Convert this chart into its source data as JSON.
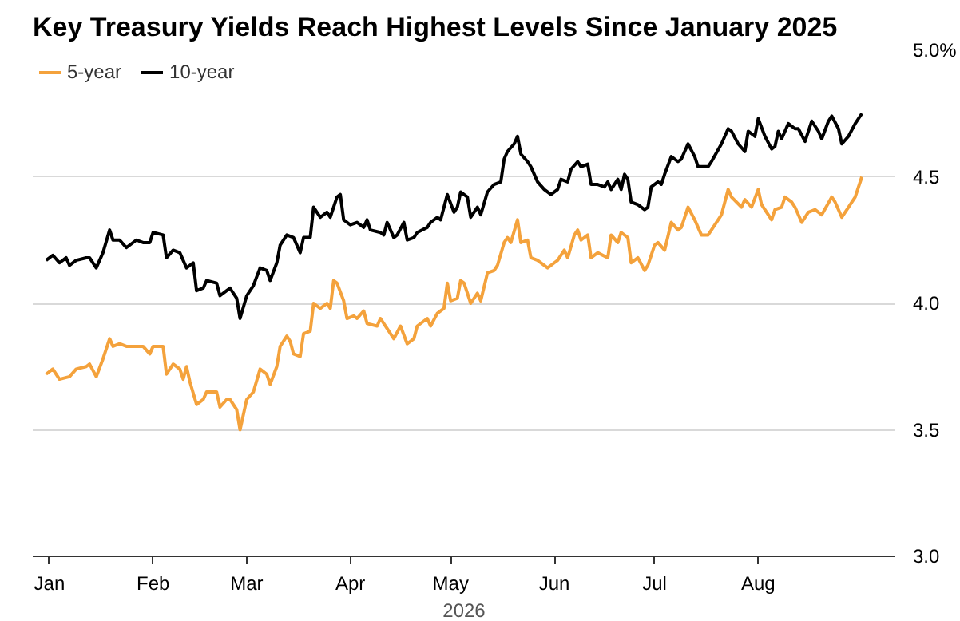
{
  "chart_data": {
    "type": "line",
    "title": "Key Treasury Yields Reach Highest Levels Since January 2025",
    "xlabel": "2026",
    "legend": "top left",
    "grid": "y",
    "line_style": "solid",
    "marker": "none",
    "xlim": [
      "2025-12-27",
      "2026-09-11"
    ],
    "xticks": [
      {
        "value": "2026-01-01",
        "label": "Jan"
      },
      {
        "value": "2026-02-01",
        "label": "Feb"
      },
      {
        "value": "2026-03-01",
        "label": "Mar"
      },
      {
        "value": "2026-04-01",
        "label": "Apr"
      },
      {
        "value": "2026-05-01",
        "label": "May"
      },
      {
        "value": "2026-06-01",
        "label": "Jun"
      },
      {
        "value": "2026-07-01",
        "label": "Jul"
      },
      {
        "value": "2026-08-01",
        "label": "Aug"
      }
    ],
    "ylim": [
      3.0,
      5.0
    ],
    "yticks": [
      {
        "value": 3.0,
        "label": "3.0"
      },
      {
        "value": 3.5,
        "label": "3.5"
      },
      {
        "value": 4.0,
        "label": "4.0"
      },
      {
        "value": 4.5,
        "label": "4.5"
      },
      {
        "value": 5.0,
        "label": "5.0%"
      }
    ],
    "series": [
      {
        "name": "5-year",
        "color": "#f4a23c",
        "x": [
          "2025-12-31",
          "2026-01-02",
          "2026-01-04",
          "2026-01-07",
          "2026-01-09",
          "2026-01-12",
          "2026-01-13",
          "2026-01-15",
          "2026-01-17",
          "2026-01-19",
          "2026-01-20",
          "2026-01-22",
          "2026-01-24",
          "2026-01-27",
          "2026-01-29",
          "2026-01-31",
          "2026-02-01",
          "2026-02-04",
          "2026-02-05",
          "2026-02-07",
          "2026-02-09",
          "2026-02-10",
          "2026-02-11",
          "2026-02-12",
          "2026-02-14",
          "2026-02-16",
          "2026-02-17",
          "2026-02-20",
          "2026-02-21",
          "2026-02-23",
          "2026-02-24",
          "2026-02-26",
          "2026-02-27",
          "2026-03-01",
          "2026-03-03",
          "2026-03-05",
          "2026-03-07",
          "2026-03-08",
          "2026-03-10",
          "2026-03-11",
          "2026-03-13",
          "2026-03-14",
          "2026-03-15",
          "2026-03-17",
          "2026-03-18",
          "2026-03-20",
          "2026-03-21",
          "2026-03-23",
          "2026-03-25",
          "2026-03-26",
          "2026-03-27",
          "2026-03-28",
          "2026-03-30",
          "2026-03-31",
          "2026-04-02",
          "2026-04-03",
          "2026-04-05",
          "2026-04-06",
          "2026-04-09",
          "2026-04-10",
          "2026-04-12",
          "2026-04-14",
          "2026-04-16",
          "2026-04-18",
          "2026-04-20",
          "2026-04-21",
          "2026-04-24",
          "2026-04-25",
          "2026-04-27",
          "2026-04-29",
          "2026-04-30",
          "2026-05-01",
          "2026-05-03",
          "2026-05-04",
          "2026-05-05",
          "2026-05-07",
          "2026-05-09",
          "2026-05-10",
          "2026-05-12",
          "2026-05-14",
          "2026-05-15",
          "2026-05-17",
          "2026-05-18",
          "2026-05-19",
          "2026-05-21",
          "2026-05-22",
          "2026-05-24",
          "2026-05-25",
          "2026-05-27",
          "2026-05-30",
          "2026-06-01",
          "2026-06-02",
          "2026-06-04",
          "2026-06-05",
          "2026-06-07",
          "2026-06-08",
          "2026-06-09",
          "2026-06-11",
          "2026-06-12",
          "2026-06-14",
          "2026-06-17",
          "2026-06-18",
          "2026-06-20",
          "2026-06-21",
          "2026-06-23",
          "2026-06-24",
          "2026-06-26",
          "2026-06-28",
          "2026-06-29",
          "2026-07-01",
          "2026-07-02",
          "2026-07-04",
          "2026-07-06",
          "2026-07-08",
          "2026-07-09",
          "2026-07-11",
          "2026-07-13",
          "2026-07-15",
          "2026-07-17",
          "2026-07-18",
          "2026-07-21",
          "2026-07-23",
          "2026-07-24",
          "2026-07-27",
          "2026-07-28",
          "2026-07-30",
          "2026-08-01",
          "2026-08-02",
          "2026-08-05",
          "2026-08-06",
          "2026-08-08",
          "2026-08-09",
          "2026-08-11",
          "2026-08-12",
          "2026-08-14",
          "2026-08-16",
          "2026-08-18",
          "2026-08-20",
          "2026-08-23",
          "2026-08-24",
          "2026-08-26",
          "2026-08-28",
          "2026-08-30",
          "2026-09-01"
        ],
        "values": [
          3.72,
          3.74,
          3.7,
          3.71,
          3.74,
          3.75,
          3.76,
          3.71,
          3.78,
          3.86,
          3.83,
          3.84,
          3.83,
          3.83,
          3.83,
          3.8,
          3.83,
          3.83,
          3.72,
          3.76,
          3.74,
          3.7,
          3.75,
          3.69,
          3.6,
          3.62,
          3.65,
          3.65,
          3.59,
          3.62,
          3.62,
          3.58,
          3.5,
          3.62,
          3.65,
          3.74,
          3.72,
          3.68,
          3.75,
          3.83,
          3.87,
          3.85,
          3.8,
          3.79,
          3.88,
          3.89,
          4.0,
          3.98,
          4.0,
          3.98,
          4.09,
          4.08,
          4.01,
          3.94,
          3.95,
          3.94,
          3.97,
          3.92,
          3.91,
          3.94,
          3.9,
          3.86,
          3.91,
          3.84,
          3.86,
          3.91,
          3.94,
          3.91,
          3.96,
          3.98,
          4.08,
          4.01,
          4.02,
          4.09,
          4.08,
          4.0,
          4.04,
          4.01,
          4.12,
          4.13,
          4.15,
          4.24,
          4.26,
          4.24,
          4.33,
          4.24,
          4.25,
          4.18,
          4.17,
          4.14,
          4.16,
          4.17,
          4.21,
          4.18,
          4.27,
          4.29,
          4.25,
          4.27,
          4.18,
          4.2,
          4.18,
          4.27,
          4.24,
          4.28,
          4.26,
          4.16,
          4.18,
          4.13,
          4.15,
          4.23,
          4.24,
          4.21,
          4.32,
          4.29,
          4.3,
          4.38,
          4.33,
          4.27,
          4.27,
          4.29,
          4.35,
          4.45,
          4.42,
          4.38,
          4.41,
          4.38,
          4.45,
          4.39,
          4.33,
          4.37,
          4.38,
          4.42,
          4.4,
          4.38,
          4.32,
          4.36,
          4.37,
          4.35,
          4.42,
          4.4,
          4.34,
          4.38,
          4.42,
          4.5
        ]
      },
      {
        "name": "10-year",
        "color": "#000000",
        "x": [
          "2025-12-31",
          "2026-01-02",
          "2026-01-04",
          "2026-01-06",
          "2026-01-07",
          "2026-01-09",
          "2026-01-12",
          "2026-01-13",
          "2026-01-15",
          "2026-01-17",
          "2026-01-19",
          "2026-01-20",
          "2026-01-22",
          "2026-01-24",
          "2026-01-27",
          "2026-01-29",
          "2026-01-31",
          "2026-02-01",
          "2026-02-04",
          "2026-02-05",
          "2026-02-07",
          "2026-02-09",
          "2026-02-11",
          "2026-02-13",
          "2026-02-14",
          "2026-02-16",
          "2026-02-17",
          "2026-02-20",
          "2026-02-21",
          "2026-02-23",
          "2026-02-24",
          "2026-02-26",
          "2026-02-27",
          "2026-03-01",
          "2026-03-03",
          "2026-03-05",
          "2026-03-07",
          "2026-03-08",
          "2026-03-10",
          "2026-03-11",
          "2026-03-13",
          "2026-03-15",
          "2026-03-17",
          "2026-03-18",
          "2026-03-20",
          "2026-03-21",
          "2026-03-23",
          "2026-03-25",
          "2026-03-26",
          "2026-03-28",
          "2026-03-29",
          "2026-03-30",
          "2026-04-01",
          "2026-04-03",
          "2026-04-05",
          "2026-04-06",
          "2026-04-07",
          "2026-04-10",
          "2026-04-11",
          "2026-04-12",
          "2026-04-14",
          "2026-04-15",
          "2026-04-17",
          "2026-04-18",
          "2026-04-20",
          "2026-04-21",
          "2026-04-24",
          "2026-04-25",
          "2026-04-27",
          "2026-04-28",
          "2026-04-30",
          "2026-05-02",
          "2026-05-03",
          "2026-05-04",
          "2026-05-06",
          "2026-05-07",
          "2026-05-09",
          "2026-05-10",
          "2026-05-12",
          "2026-05-14",
          "2026-05-16",
          "2026-05-17",
          "2026-05-18",
          "2026-05-20",
          "2026-05-21",
          "2026-05-22",
          "2026-05-24",
          "2026-05-25",
          "2026-05-27",
          "2026-05-29",
          "2026-05-31",
          "2026-06-02",
          "2026-06-03",
          "2026-06-05",
          "2026-06-06",
          "2026-06-08",
          "2026-06-09",
          "2026-06-11",
          "2026-06-12",
          "2026-06-14",
          "2026-06-16",
          "2026-06-17",
          "2026-06-18",
          "2026-06-20",
          "2026-06-21",
          "2026-06-22",
          "2026-06-23",
          "2026-06-24",
          "2026-06-26",
          "2026-06-28",
          "2026-06-29",
          "2026-06-30",
          "2026-07-02",
          "2026-07-03",
          "2026-07-04",
          "2026-07-06",
          "2026-07-08",
          "2026-07-09",
          "2026-07-11",
          "2026-07-13",
          "2026-07-14",
          "2026-07-17",
          "2026-07-18",
          "2026-07-21",
          "2026-07-23",
          "2026-07-24",
          "2026-07-26",
          "2026-07-28",
          "2026-07-29",
          "2026-07-31",
          "2026-08-01",
          "2026-08-03",
          "2026-08-05",
          "2026-08-06",
          "2026-08-07",
          "2026-08-08",
          "2026-08-10",
          "2026-08-12",
          "2026-08-13",
          "2026-08-15",
          "2026-08-17",
          "2026-08-19",
          "2026-08-20",
          "2026-08-22",
          "2026-08-23",
          "2026-08-25",
          "2026-08-26",
          "2026-08-28",
          "2026-08-30",
          "2026-09-01"
        ],
        "values": [
          4.17,
          4.19,
          4.16,
          4.18,
          4.15,
          4.17,
          4.18,
          4.18,
          4.14,
          4.2,
          4.29,
          4.25,
          4.25,
          4.22,
          4.25,
          4.24,
          4.24,
          4.28,
          4.27,
          4.18,
          4.21,
          4.2,
          4.14,
          4.16,
          4.05,
          4.06,
          4.09,
          4.08,
          4.03,
          4.05,
          4.06,
          4.02,
          3.94,
          4.03,
          4.07,
          4.14,
          4.13,
          4.09,
          4.16,
          4.23,
          4.27,
          4.26,
          4.2,
          4.26,
          4.26,
          4.38,
          4.34,
          4.36,
          4.34,
          4.42,
          4.43,
          4.33,
          4.31,
          4.32,
          4.3,
          4.33,
          4.29,
          4.28,
          4.27,
          4.32,
          4.26,
          4.27,
          4.32,
          4.25,
          4.26,
          4.28,
          4.3,
          4.32,
          4.34,
          4.33,
          4.43,
          4.36,
          4.38,
          4.44,
          4.42,
          4.34,
          4.38,
          4.35,
          4.44,
          4.47,
          4.48,
          4.57,
          4.6,
          4.63,
          4.66,
          4.59,
          4.56,
          4.54,
          4.48,
          4.45,
          4.43,
          4.45,
          4.49,
          4.48,
          4.53,
          4.56,
          4.54,
          4.55,
          4.47,
          4.47,
          4.46,
          4.48,
          4.45,
          4.49,
          4.45,
          4.51,
          4.49,
          4.4,
          4.39,
          4.37,
          4.38,
          4.46,
          4.48,
          4.47,
          4.51,
          4.58,
          4.56,
          4.57,
          4.63,
          4.58,
          4.54,
          4.54,
          4.56,
          4.63,
          4.69,
          4.68,
          4.63,
          4.6,
          4.68,
          4.66,
          4.73,
          4.66,
          4.61,
          4.62,
          4.68,
          4.65,
          4.71,
          4.69,
          4.69,
          4.64,
          4.72,
          4.68,
          4.65,
          4.72,
          4.74,
          4.69,
          4.63,
          4.66,
          4.71,
          4.75
        ]
      }
    ]
  }
}
